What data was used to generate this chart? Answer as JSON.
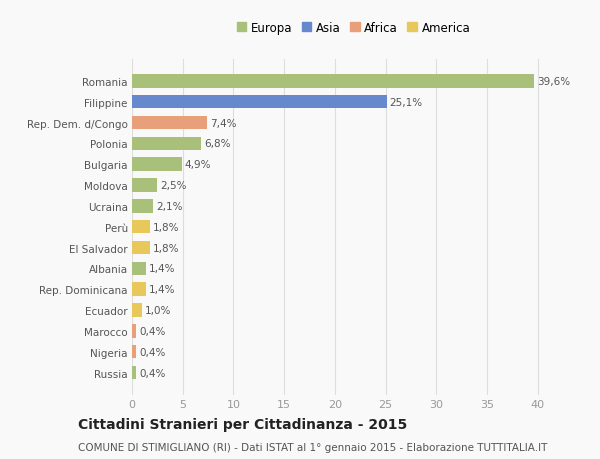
{
  "countries": [
    "Romania",
    "Filippine",
    "Rep. Dem. d/Congo",
    "Polonia",
    "Bulgaria",
    "Moldova",
    "Ucraina",
    "Perù",
    "El Salvador",
    "Albania",
    "Rep. Dominicana",
    "Ecuador",
    "Marocco",
    "Nigeria",
    "Russia"
  ],
  "values": [
    39.6,
    25.1,
    7.4,
    6.8,
    4.9,
    2.5,
    2.1,
    1.8,
    1.8,
    1.4,
    1.4,
    1.0,
    0.4,
    0.4,
    0.4
  ],
  "labels": [
    "39,6%",
    "25,1%",
    "7,4%",
    "6,8%",
    "4,9%",
    "2,5%",
    "2,1%",
    "1,8%",
    "1,8%",
    "1,4%",
    "1,4%",
    "1,0%",
    "0,4%",
    "0,4%",
    "0,4%"
  ],
  "continents": [
    "Europa",
    "Asia",
    "Africa",
    "Europa",
    "Europa",
    "Europa",
    "Europa",
    "America",
    "America",
    "Europa",
    "America",
    "America",
    "Africa",
    "Africa",
    "Europa"
  ],
  "continent_colors": {
    "Europa": "#a8c07a",
    "Asia": "#6688cc",
    "Africa": "#e8a07a",
    "America": "#e8c85a"
  },
  "legend_order": [
    "Europa",
    "Asia",
    "Africa",
    "America"
  ],
  "legend_colors": [
    "#a8c07a",
    "#6688cc",
    "#e8a07a",
    "#e8c85a"
  ],
  "xlim": [
    0,
    42
  ],
  "xticks": [
    0,
    5,
    10,
    15,
    20,
    25,
    30,
    35,
    40
  ],
  "title": "Cittadini Stranieri per Cittadinanza - 2015",
  "subtitle": "COMUNE DI STIMIGLIANO (RI) - Dati ISTAT al 1° gennaio 2015 - Elaborazione TUTTITALIA.IT",
  "bg_color": "#f9f9f9",
  "grid_color": "#dddddd",
  "bar_height": 0.65,
  "label_fontsize": 7.5,
  "tick_fontsize": 7.5,
  "xtick_fontsize": 8,
  "title_fontsize": 10,
  "subtitle_fontsize": 7.5,
  "legend_fontsize": 8.5
}
